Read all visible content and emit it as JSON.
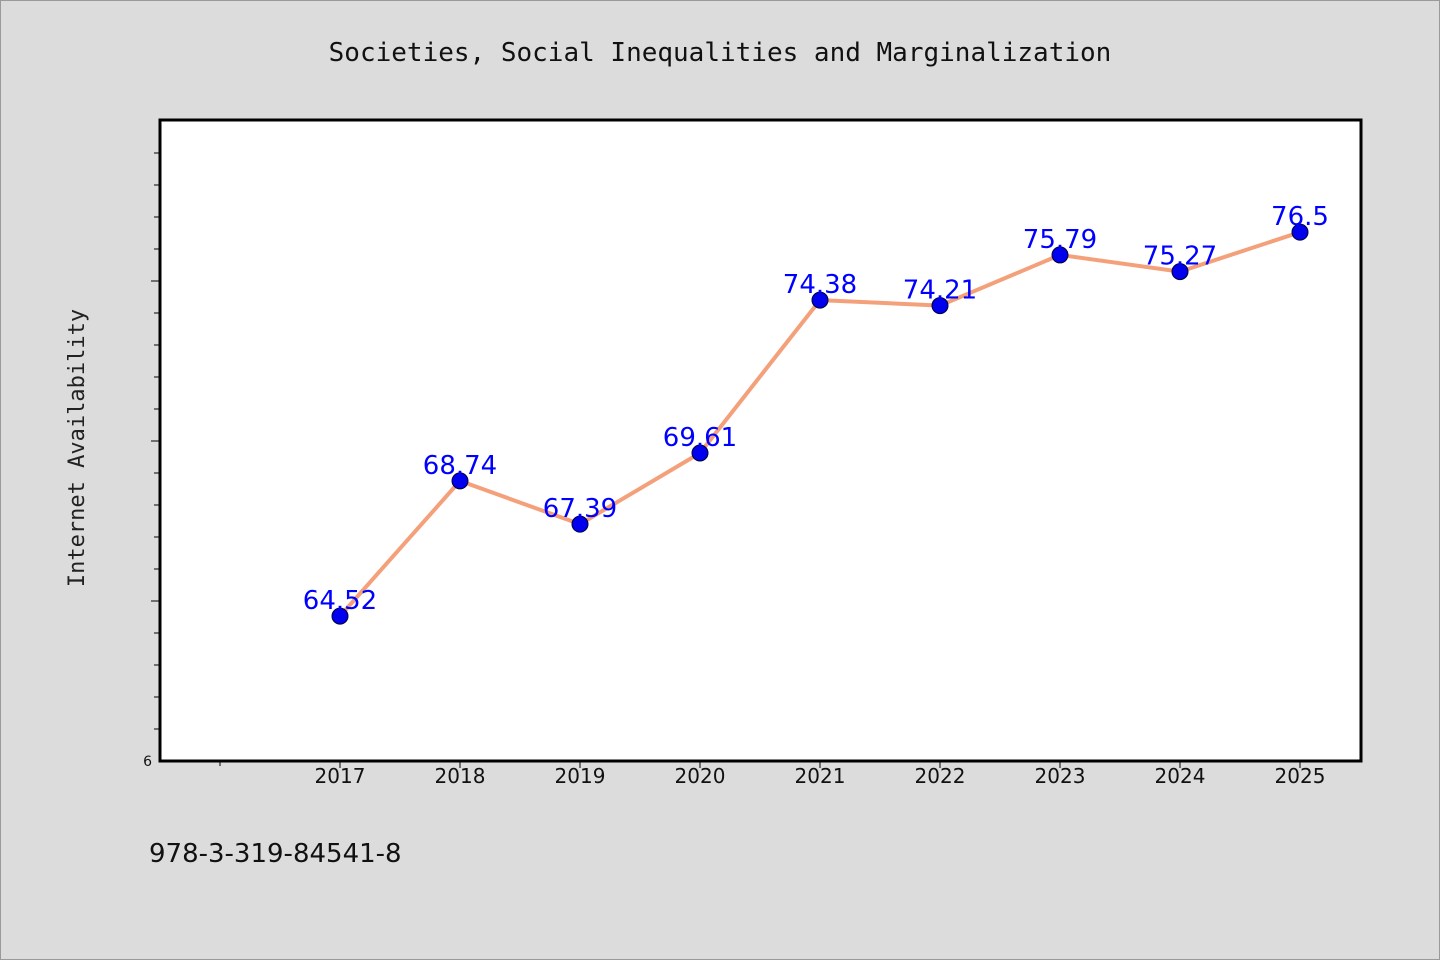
{
  "chart_data": {
    "type": "line",
    "title": "Societies, Social Inequalities and Marginalization",
    "ylabel": "Internet Availability",
    "xlabel": "",
    "categories": [
      "2017",
      "2018",
      "2019",
      "2020",
      "2021",
      "2022",
      "2023",
      "2024",
      "2025"
    ],
    "series": [
      {
        "values": [
          64.52,
          68.74,
          67.39,
          69.61,
          74.38,
          74.21,
          75.79,
          75.27,
          76.5
        ],
        "color": "#f4a07a",
        "marker_color": "#0000ee"
      }
    ],
    "data_labels": [
      "64.52",
      "68.74",
      "67.39",
      "69.61",
      "74.38",
      "74.21",
      "75.79",
      "75.27",
      "76.5"
    ],
    "y_tick_labels": [
      "6"
    ],
    "ylim": [
      60,
      80
    ],
    "grid": false,
    "legend": "none"
  },
  "footer": {
    "isbn": "978-3-319-84541-8"
  },
  "colors": {
    "background": "#dcdcdc",
    "plot_background": "#ffffff",
    "label_color": "#0000ff"
  }
}
